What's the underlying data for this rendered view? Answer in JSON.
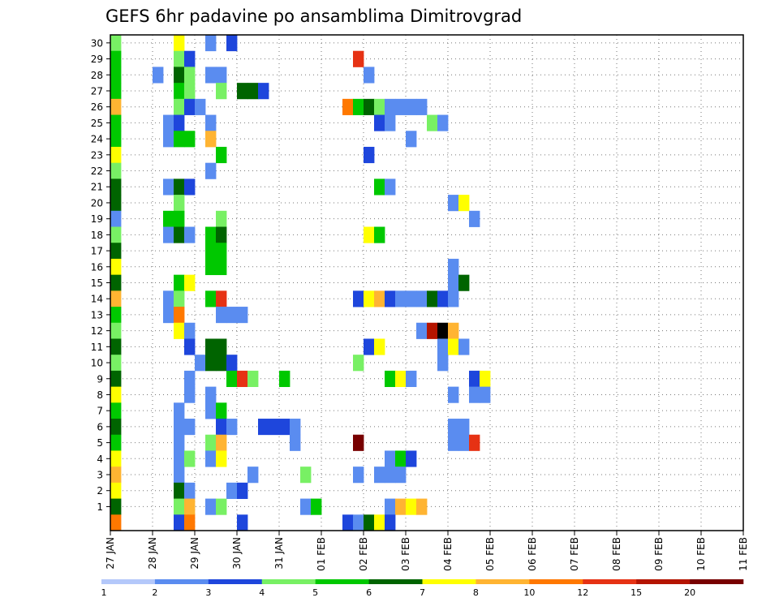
{
  "chart_data": {
    "type": "heatmap",
    "title": "GEFS 6hr padavine po ansamblima Dimitrovgrad",
    "xlabel": "",
    "ylabel": "",
    "x_tick_labels": [
      "27 JAN",
      "28 JAN",
      "29 JAN",
      "30 JAN",
      "31 JAN",
      "01 FEB",
      "02 FEB",
      "03 FEB",
      "04 FEB",
      "05 FEB",
      "06 FEB",
      "07 FEB",
      "08 FEB",
      "09 FEB",
      "10 FEB",
      "11 FEB"
    ],
    "y_range": [
      0,
      30
    ],
    "y_tick_labels": [
      "1",
      "2",
      "3",
      "4",
      "5",
      "6",
      "7",
      "8",
      "9",
      "10",
      "11",
      "12",
      "13",
      "14",
      "15",
      "16",
      "17",
      "18",
      "19",
      "20",
      "21",
      "22",
      "23",
      "24",
      "25",
      "26",
      "27",
      "28",
      "29",
      "30"
    ],
    "grid": true,
    "time_step_hours": 6,
    "colorbar": {
      "labels": [
        "1",
        "2",
        "3",
        "4",
        "5",
        "6",
        "7",
        "8",
        "10",
        "12",
        "15",
        "20"
      ],
      "colors": [
        "#b4c8fa",
        "#5a8cf0",
        "#1e46dc",
        "#78f064",
        "#00c800",
        "#006400",
        "#ffff00",
        "#ffb432",
        "#ff7800",
        "#e63214",
        "#b41400",
        "#780000"
      ]
    },
    "cells": [
      [
        0,
        30,
        3
      ],
      [
        6,
        30,
        6
      ],
      [
        9,
        30,
        1
      ],
      [
        11,
        30,
        2
      ],
      [
        0,
        29,
        4
      ],
      [
        6,
        29,
        3
      ],
      [
        7,
        29,
        2
      ],
      [
        23,
        29,
        9
      ],
      [
        0,
        28,
        4
      ],
      [
        4,
        28,
        1
      ],
      [
        6,
        28,
        5
      ],
      [
        7,
        28,
        3
      ],
      [
        9,
        28,
        1
      ],
      [
        10,
        28,
        1
      ],
      [
        24,
        28,
        1
      ],
      [
        0,
        27,
        4
      ],
      [
        6,
        27,
        4
      ],
      [
        7,
        27,
        3
      ],
      [
        10,
        27,
        3
      ],
      [
        12,
        27,
        5
      ],
      [
        13,
        27,
        5
      ],
      [
        14,
        27,
        2
      ],
      [
        0,
        26,
        7
      ],
      [
        6,
        26,
        3
      ],
      [
        7,
        26,
        2
      ],
      [
        8,
        26,
        1
      ],
      [
        22,
        26,
        8
      ],
      [
        23,
        26,
        4
      ],
      [
        24,
        26,
        5
      ],
      [
        25,
        26,
        3
      ],
      [
        26,
        26,
        1
      ],
      [
        27,
        26,
        1
      ],
      [
        28,
        26,
        1
      ],
      [
        29,
        26,
        1
      ],
      [
        0,
        25,
        4
      ],
      [
        5,
        25,
        1
      ],
      [
        6,
        25,
        2
      ],
      [
        9,
        25,
        1
      ],
      [
        25,
        25,
        2
      ],
      [
        26,
        25,
        1
      ],
      [
        30,
        25,
        3
      ],
      [
        31,
        25,
        1
      ],
      [
        0,
        24,
        4
      ],
      [
        5,
        24,
        1
      ],
      [
        6,
        24,
        4
      ],
      [
        7,
        24,
        4
      ],
      [
        9,
        24,
        7
      ],
      [
        28,
        24,
        1
      ],
      [
        0,
        23,
        6
      ],
      [
        10,
        23,
        4
      ],
      [
        24,
        23,
        2
      ],
      [
        0,
        22,
        3
      ],
      [
        9,
        22,
        1
      ],
      [
        0,
        21,
        5
      ],
      [
        5,
        21,
        1
      ],
      [
        6,
        21,
        5
      ],
      [
        7,
        21,
        2
      ],
      [
        25,
        21,
        4
      ],
      [
        26,
        21,
        1
      ],
      [
        0,
        20,
        5
      ],
      [
        6,
        20,
        3
      ],
      [
        32,
        20,
        1
      ],
      [
        33,
        20,
        6
      ],
      [
        0,
        19,
        1
      ],
      [
        5,
        19,
        4
      ],
      [
        6,
        19,
        4
      ],
      [
        10,
        19,
        3
      ],
      [
        34,
        19,
        1
      ],
      [
        0,
        18,
        3
      ],
      [
        5,
        18,
        1
      ],
      [
        6,
        18,
        5
      ],
      [
        7,
        18,
        1
      ],
      [
        9,
        18,
        4
      ],
      [
        10,
        18,
        5
      ],
      [
        24,
        18,
        6
      ],
      [
        25,
        18,
        4
      ],
      [
        0,
        17,
        5
      ],
      [
        9,
        17,
        4
      ],
      [
        10,
        17,
        4
      ],
      [
        0,
        16,
        6
      ],
      [
        9,
        16,
        4
      ],
      [
        10,
        16,
        4
      ],
      [
        32,
        16,
        1
      ],
      [
        0,
        15,
        5
      ],
      [
        6,
        15,
        4
      ],
      [
        7,
        15,
        6
      ],
      [
        32,
        15,
        1
      ],
      [
        33,
        15,
        5
      ],
      [
        0,
        14,
        7
      ],
      [
        5,
        14,
        1
      ],
      [
        6,
        14,
        3
      ],
      [
        9,
        14,
        4
      ],
      [
        10,
        14,
        9
      ],
      [
        23,
        14,
        2
      ],
      [
        24,
        14,
        6
      ],
      [
        25,
        14,
        7
      ],
      [
        26,
        14,
        2
      ],
      [
        27,
        14,
        1
      ],
      [
        28,
        14,
        1
      ],
      [
        29,
        14,
        1
      ],
      [
        30,
        14,
        5
      ],
      [
        31,
        14,
        2
      ],
      [
        32,
        14,
        1
      ],
      [
        0,
        13,
        4
      ],
      [
        5,
        13,
        1
      ],
      [
        6,
        13,
        8
      ],
      [
        10,
        13,
        1
      ],
      [
        11,
        13,
        1
      ],
      [
        12,
        13,
        1
      ],
      [
        0,
        12,
        3
      ],
      [
        6,
        12,
        6
      ],
      [
        7,
        12,
        1
      ],
      [
        29,
        12,
        1
      ],
      [
        30,
        12,
        10
      ],
      [
        31,
        12,
        12
      ],
      [
        32,
        12,
        7
      ],
      [
        0,
        11,
        5
      ],
      [
        7,
        11,
        2
      ],
      [
        9,
        11,
        5
      ],
      [
        10,
        11,
        5
      ],
      [
        24,
        11,
        2
      ],
      [
        25,
        11,
        6
      ],
      [
        31,
        11,
        1
      ],
      [
        32,
        11,
        6
      ],
      [
        33,
        11,
        1
      ],
      [
        0,
        10,
        3
      ],
      [
        8,
        10,
        1
      ],
      [
        9,
        10,
        5
      ],
      [
        10,
        10,
        5
      ],
      [
        11,
        10,
        2
      ],
      [
        23,
        10,
        3
      ],
      [
        31,
        10,
        1
      ],
      [
        0,
        9,
        5
      ],
      [
        7,
        9,
        1
      ],
      [
        11,
        9,
        4
      ],
      [
        12,
        9,
        9
      ],
      [
        13,
        9,
        3
      ],
      [
        16,
        9,
        4
      ],
      [
        26,
        9,
        4
      ],
      [
        27,
        9,
        6
      ],
      [
        28,
        9,
        1
      ],
      [
        34,
        9,
        2
      ],
      [
        35,
        9,
        6
      ],
      [
        0,
        8,
        6
      ],
      [
        7,
        8,
        1
      ],
      [
        9,
        8,
        1
      ],
      [
        32,
        8,
        1
      ],
      [
        34,
        8,
        1
      ],
      [
        35,
        8,
        1
      ],
      [
        0,
        7,
        4
      ],
      [
        6,
        7,
        1
      ],
      [
        9,
        7,
        1
      ],
      [
        10,
        7,
        4
      ],
      [
        0,
        6,
        5
      ],
      [
        6,
        6,
        1
      ],
      [
        7,
        6,
        1
      ],
      [
        10,
        6,
        2
      ],
      [
        11,
        6,
        1
      ],
      [
        14,
        6,
        2
      ],
      [
        15,
        6,
        2
      ],
      [
        16,
        6,
        2
      ],
      [
        17,
        6,
        1
      ],
      [
        32,
        6,
        1
      ],
      [
        33,
        6,
        1
      ],
      [
        0,
        5,
        4
      ],
      [
        6,
        5,
        1
      ],
      [
        9,
        5,
        3
      ],
      [
        10,
        5,
        7
      ],
      [
        17,
        5,
        1
      ],
      [
        23,
        5,
        11
      ],
      [
        32,
        5,
        1
      ],
      [
        33,
        5,
        1
      ],
      [
        34,
        5,
        9
      ],
      [
        0,
        4,
        6
      ],
      [
        6,
        4,
        1
      ],
      [
        7,
        4,
        3
      ],
      [
        9,
        4,
        1
      ],
      [
        10,
        4,
        6
      ],
      [
        26,
        4,
        1
      ],
      [
        27,
        4,
        4
      ],
      [
        28,
        4,
        2
      ],
      [
        0,
        3,
        7
      ],
      [
        6,
        3,
        1
      ],
      [
        13,
        3,
        1
      ],
      [
        18,
        3,
        3
      ],
      [
        23,
        3,
        1
      ],
      [
        25,
        3,
        1
      ],
      [
        26,
        3,
        1
      ],
      [
        27,
        3,
        1
      ],
      [
        0,
        2,
        6
      ],
      [
        6,
        2,
        5
      ],
      [
        7,
        2,
        1
      ],
      [
        11,
        2,
        1
      ],
      [
        12,
        2,
        2
      ],
      [
        0,
        1,
        5
      ],
      [
        6,
        1,
        3
      ],
      [
        7,
        1,
        7
      ],
      [
        9,
        1,
        1
      ],
      [
        10,
        1,
        3
      ],
      [
        18,
        1,
        1
      ],
      [
        19,
        1,
        4
      ],
      [
        26,
        1,
        1
      ],
      [
        27,
        1,
        7
      ],
      [
        28,
        1,
        6
      ],
      [
        29,
        1,
        7
      ],
      [
        0,
        0,
        8
      ],
      [
        6,
        0,
        2
      ],
      [
        7,
        0,
        8
      ],
      [
        12,
        0,
        2
      ],
      [
        22,
        0,
        2
      ],
      [
        23,
        0,
        1
      ],
      [
        24,
        0,
        5
      ],
      [
        25,
        0,
        6
      ],
      [
        26,
        0,
        2
      ]
    ]
  }
}
